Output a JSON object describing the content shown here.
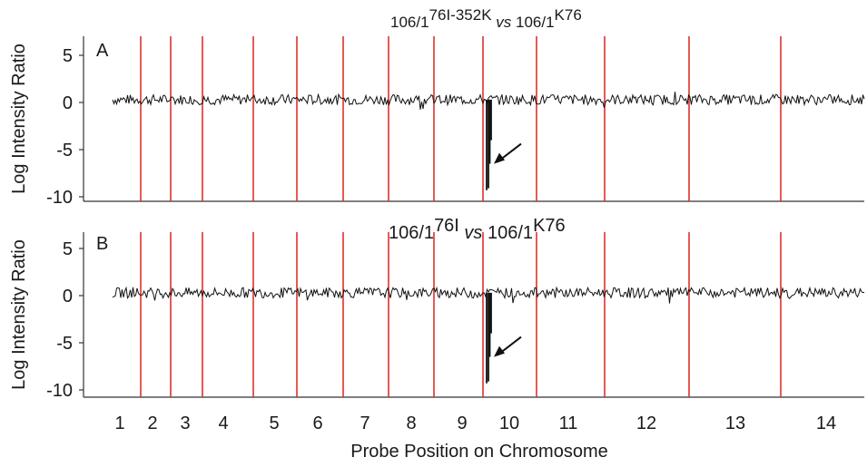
{
  "xlabel": "Probe Position on Chromosome",
  "chromosomes": [
    "1",
    "2",
    "3",
    "4",
    "5",
    "6",
    "7",
    "8",
    "9",
    "10",
    "11",
    "12",
    "13",
    "14"
  ],
  "colors": {
    "boundary": "#e0302a",
    "trace": "#111111",
    "axis": "#333333"
  },
  "chart_data": [
    {
      "type": "line",
      "panel": "A",
      "title_base1": "106/1",
      "title_sup1": "76I-352K",
      "title_vs": "vs",
      "title_base2": "106/1",
      "title_sup2": "K76",
      "ylabel": "Log Intensity Ratio",
      "ylim": [
        -10,
        6
      ],
      "yticks": [
        5,
        0,
        -5,
        -10
      ],
      "x_categories": [
        "1",
        "2",
        "3",
        "4",
        "5",
        "6",
        "7",
        "8",
        "9",
        "10",
        "11",
        "12",
        "13",
        "14"
      ],
      "baseline": 0.3,
      "deletion": {
        "chromosome": "10",
        "min_value": -9.3,
        "arrow": true
      },
      "grid": false
    },
    {
      "type": "line",
      "panel": "B",
      "title_base1": "106/1",
      "title_sup1": "76I",
      "title_vs": "vs",
      "title_base2": "106/1",
      "title_sup2": "K76",
      "ylabel": "Log Intensity Ratio",
      "ylim": [
        -10,
        6
      ],
      "yticks": [
        5,
        0,
        -5,
        -10
      ],
      "x_categories": [
        "1",
        "2",
        "3",
        "4",
        "5",
        "6",
        "7",
        "8",
        "9",
        "10",
        "11",
        "12",
        "13",
        "14"
      ],
      "baseline": 0.3,
      "deletion": {
        "chromosome": "10",
        "min_value": -9.3,
        "arrow": true
      },
      "grid": false
    }
  ]
}
